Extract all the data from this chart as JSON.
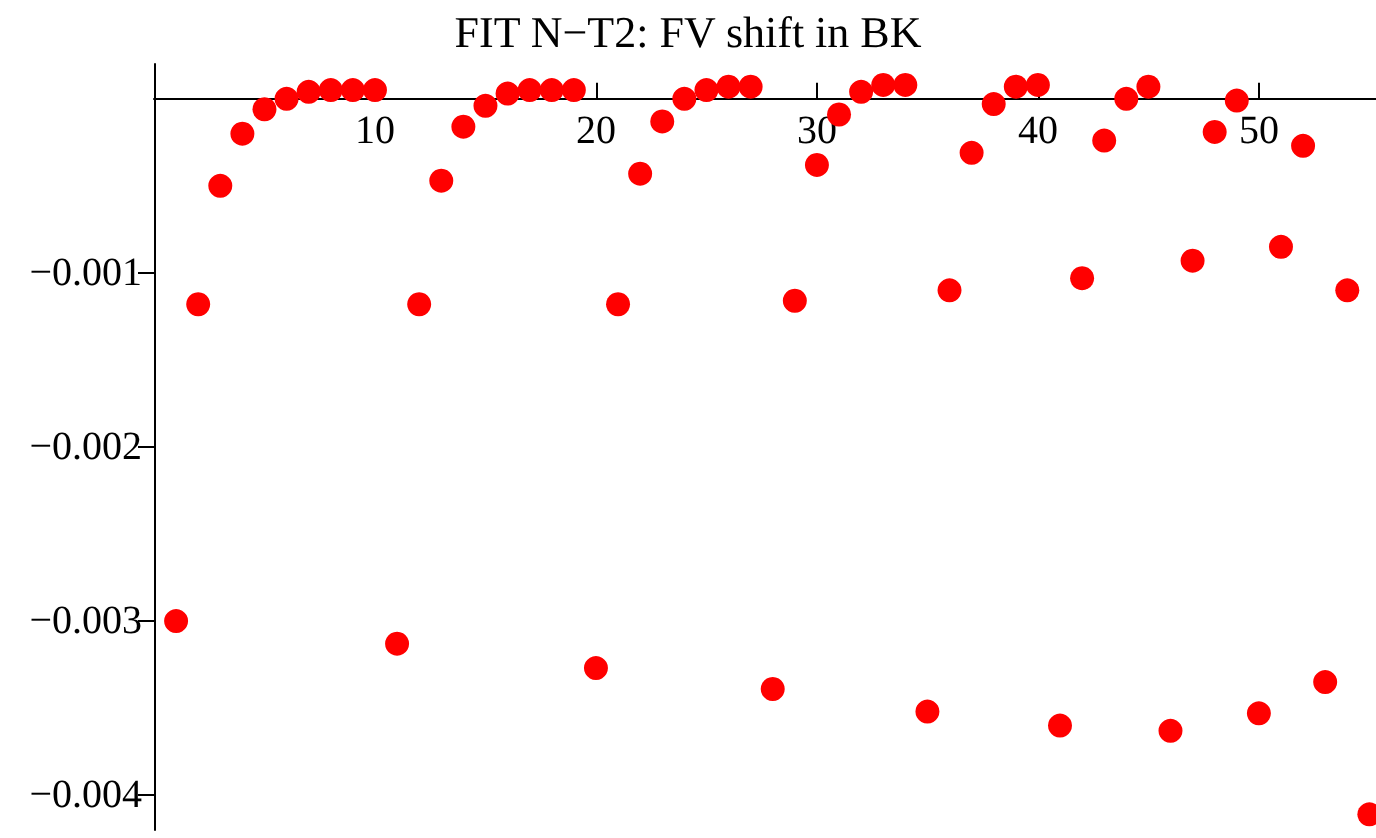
{
  "chart_data": {
    "type": "scatter",
    "title": "FIT N−T2: FV shift in BK",
    "x": [
      1,
      2,
      3,
      4,
      5,
      6,
      7,
      8,
      9,
      10,
      11,
      12,
      13,
      14,
      15,
      16,
      17,
      18,
      19,
      20,
      21,
      22,
      23,
      24,
      25,
      26,
      27,
      28,
      29,
      30,
      31,
      32,
      33,
      34,
      35,
      36,
      37,
      38,
      39,
      40,
      41,
      42,
      43,
      44,
      45,
      46,
      47,
      48,
      49,
      50,
      51,
      52,
      53,
      54,
      55
    ],
    "series": [
      {
        "color": "#ff0000",
        "values": [
          -0.003,
          -0.00118,
          -0.0005,
          -0.0002,
          -6e-05,
          0.0,
          4e-05,
          5e-05,
          5e-05,
          5e-05,
          -0.00313,
          -0.00118,
          -0.00047,
          -0.00016,
          -4e-05,
          3e-05,
          5e-05,
          5e-05,
          5e-05,
          -0.00327,
          -0.00118,
          -0.00043,
          -0.00013,
          0.0,
          5e-05,
          7e-05,
          7e-05,
          -0.00339,
          -0.00116,
          -0.00038,
          -9e-05,
          4e-05,
          8e-05,
          8e-05,
          -0.00352,
          -0.0011,
          -0.00031,
          -3e-05,
          7e-05,
          8e-05,
          -0.0036,
          -0.00103,
          -0.00024,
          0.0,
          7e-05,
          -0.00363,
          -0.00093,
          -0.00019,
          -1e-05,
          -0.00353,
          -0.00085,
          -0.00027,
          -0.00335,
          -0.0011,
          -0.00411
        ]
      }
    ],
    "xlim": [
      0,
      55.3
    ],
    "xticks": [
      10,
      20,
      30,
      40,
      50
    ],
    "ylim": [
      -0.0042,
      0.0002
    ],
    "yticks": [
      -0.004,
      -0.003,
      -0.002,
      -0.001
    ],
    "grid": false,
    "marker": "circle"
  }
}
